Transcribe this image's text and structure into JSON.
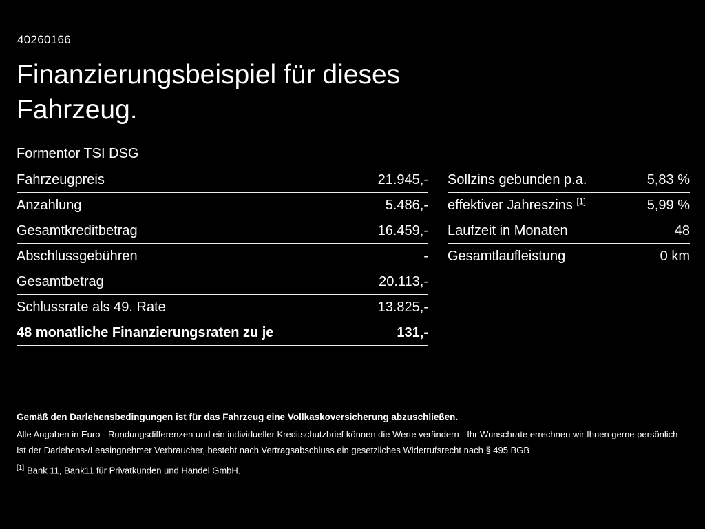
{
  "page": {
    "id": "40260166",
    "title_line1": "Finanzierungsbeispiel für dieses",
    "title_line2": "Fahrzeug.",
    "subtitle": "Formentor TSI DSG"
  },
  "left_table": {
    "rows": [
      {
        "label": "Fahrzeugpreis",
        "value": "21.945,-"
      },
      {
        "label": "Anzahlung",
        "value": "5.486,-"
      },
      {
        "label": "Gesamtkreditbetrag",
        "value": "16.459,-"
      },
      {
        "label": "Abschlussgebühren",
        "value": "-"
      },
      {
        "label": "Gesamtbetrag",
        "value": "20.113,-"
      },
      {
        "label": "Schlussrate als 49. Rate",
        "value": "13.825,-"
      },
      {
        "label": "48 monatliche Finanzierungsraten zu je",
        "value": "131,-"
      }
    ]
  },
  "right_table": {
    "rows": [
      {
        "label": "Sollzins gebunden p.a.",
        "value": "5,83 %"
      },
      {
        "label": "effektiver Jahreszins",
        "sup": "[1]",
        "value": "5,99 %"
      },
      {
        "label": "Laufzeit in Monaten",
        "value": "48"
      },
      {
        "label": "Gesamtlaufleistung",
        "value": "0 km"
      }
    ]
  },
  "footnotes": {
    "bold_note": "Gemäß den Darlehensbedingungen ist für das Fahrzeug eine Vollkaskoversicherung abzuschließen.",
    "note1": "Alle Angaben in Euro - Rundungsdifferenzen und ein individueller Kreditschutzbrief können die Werte verändern - Ihr Wunschrate errechnen wir Ihnen gerne persönlich",
    "note2": "Ist der Darlehens-/Leasingnehmer Verbraucher, besteht nach Vertragsabschluss ein gesetzliches Widerrufsrecht nach § 495 BGB",
    "ref_marker": "[1]",
    "ref_text": "Bank 11, Bank11 für Privatkunden und Handel GmbH."
  },
  "colors": {
    "background": "#000000",
    "text": "#ffffff",
    "divider": "#ededed"
  }
}
